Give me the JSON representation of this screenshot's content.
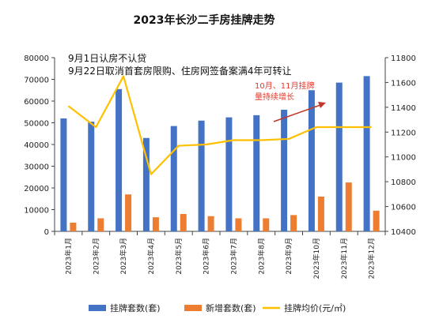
{
  "chart_data": {
    "type": "bar",
    "title": "2023年长沙二手房挂牌走势",
    "categories": [
      "2023年1月",
      "2023年2月",
      "2023年3月",
      "2023年4月",
      "2023年5月",
      "2023年6月",
      "2023年7月",
      "2023年8月",
      "2023年9月",
      "2023年10月",
      "2023年11月",
      "2023年12月"
    ],
    "series": [
      {
        "name": "挂牌套数(套)",
        "type": "bar",
        "axis": "left",
        "color": "#4472C4",
        "values": [
          52000,
          50500,
          65500,
          43000,
          48500,
          51000,
          52500,
          53500,
          56000,
          65000,
          68500,
          71500
        ]
      },
      {
        "name": "新增套数(套)",
        "type": "bar",
        "axis": "left",
        "color": "#ED7D31",
        "values": [
          4000,
          6000,
          17000,
          6500,
          8000,
          7000,
          6000,
          6000,
          7500,
          16000,
          22500,
          9500
        ]
      },
      {
        "name": "挂牌均价(元/㎡)",
        "type": "line",
        "axis": "right",
        "color": "#FFC000",
        "values": [
          11410,
          11240,
          11650,
          10860,
          11090,
          11100,
          11135,
          11135,
          11145,
          11240,
          11240,
          11240
        ]
      }
    ],
    "y_left": {
      "min": 0,
      "max": 80000,
      "ticks": [
        "0",
        "10000",
        "20000",
        "30000",
        "40000",
        "50000",
        "60000",
        "70000",
        "80000"
      ]
    },
    "y_right": {
      "min": 10400,
      "max": 11800,
      "ticks": [
        "10400",
        "10600",
        "10800",
        "11000",
        "11200",
        "11400",
        "11600",
        "11800"
      ]
    },
    "annotations": {
      "note_line1": "9月1日认房不认贷",
      "note_line2": "9月22日取消首套房限购、住房网签备案满4年可转让",
      "red_line1": "10月、11月挂牌",
      "red_line2": "量持续增长"
    },
    "legend_position": "bottom",
    "grid": false
  }
}
